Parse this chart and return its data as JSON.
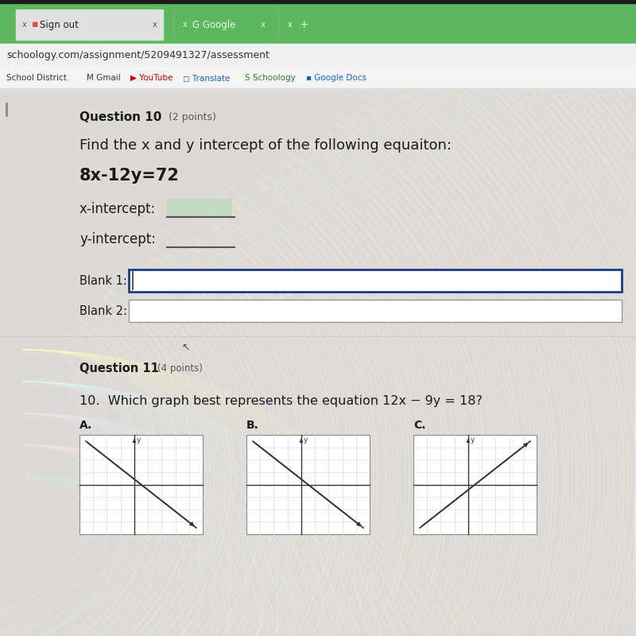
{
  "page_bg": "#d8d5d0",
  "browser_green": "#5cb85c",
  "tab_bar_bg": "#6abf6a",
  "tab1_text": "x  Sign out",
  "tab2_text": "x  G Google",
  "tab3_text": "x  +",
  "url": "schoology.com/assignment/5209491327/assessment",
  "bookmarks": [
    "School District",
    "M Gmail",
    "■ YouTube",
    "■ Translate",
    "S Schoology",
    "■ Google Docs"
  ],
  "bm_colors": [
    "#333333",
    "#333333",
    "#333333",
    "#333333",
    "#333333",
    "#333333"
  ],
  "content_bg": "#e8e6e1",
  "question_number": "Question 10",
  "question_points": "(2 points)",
  "question_text": "Find the x and y intercept of the following equaiton:",
  "equation": "8x-12y=72",
  "x_intercept_label": "x-intercept:",
  "y_intercept_label": "y-intercept:",
  "blank1_label": "Blank 1:",
  "blank2_label": "Blank 2:",
  "blank1_border_color": "#1a3a8a",
  "blank2_border_color": "#999999",
  "question11_number": "Question 11",
  "question11_points": "(4 points)",
  "question11_text": "10.  Which graph best represents the equation 12x − 9y = 18?",
  "graph_labels": [
    "A.",
    "B.",
    "C."
  ],
  "text_color": "#1a1a1a",
  "light_text": "#555555",
  "wave_colors": [
    "#c8e6c9",
    "#f8bbd0",
    "#c5cae9",
    "#dcedc8",
    "#b2ebf2",
    "#fff9c4",
    "#ffe0b2",
    "#e1bee7"
  ],
  "green_highlight": "#b2d8b2"
}
